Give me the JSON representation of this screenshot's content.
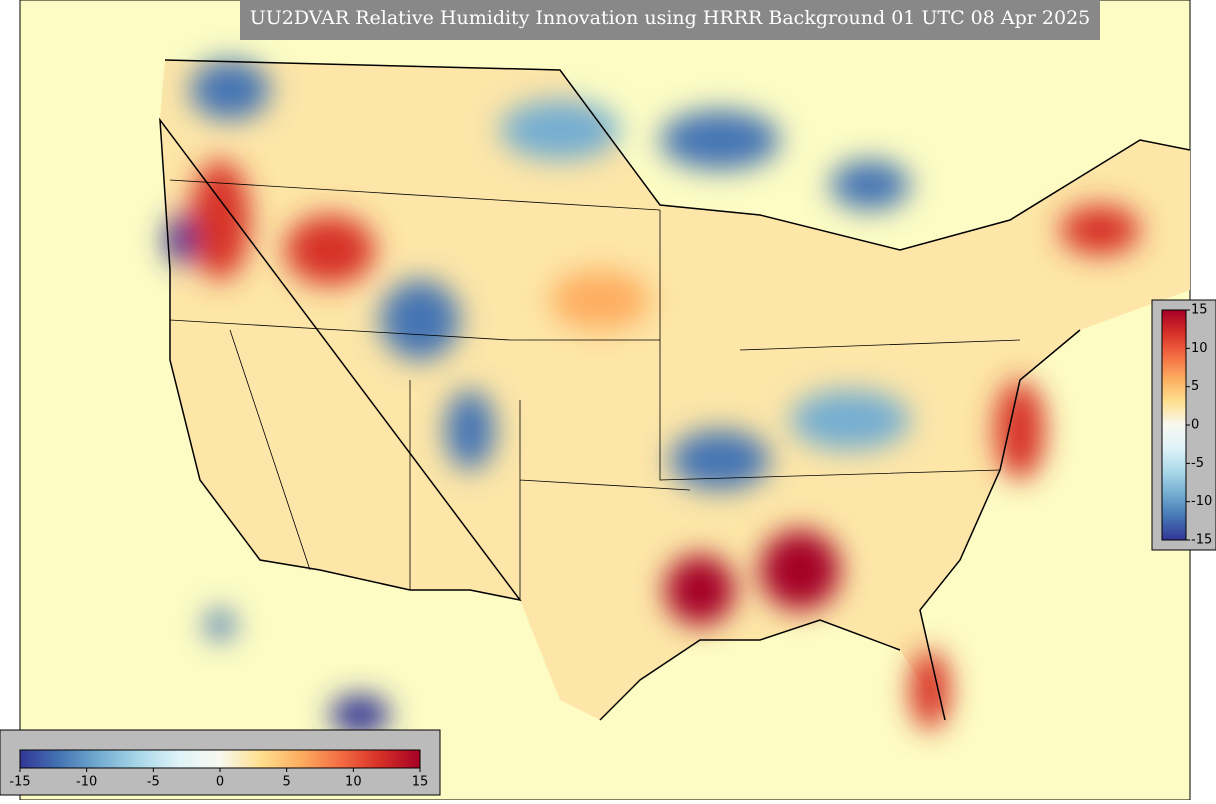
{
  "title": "UU2DVAR Relative Humidity Innovation using HRRR Background 01 UTC 08 Apr 2025",
  "colormap": [
    "#313695",
    "#4575b4",
    "#74add1",
    "#abd9e9",
    "#e0f3f8",
    "#f8f8f0",
    "#fee090",
    "#fdae61",
    "#f46d43",
    "#d73027",
    "#a50026"
  ],
  "horizontal_colorbar": {
    "range": [
      -15,
      15
    ],
    "ticks": [
      -15,
      -10,
      -5,
      0,
      5,
      10,
      15
    ]
  },
  "vertical_colorbar": {
    "range": [
      -15,
      15
    ],
    "ticks": [
      -15,
      -10,
      -5,
      0,
      5,
      10,
      15
    ]
  }
}
